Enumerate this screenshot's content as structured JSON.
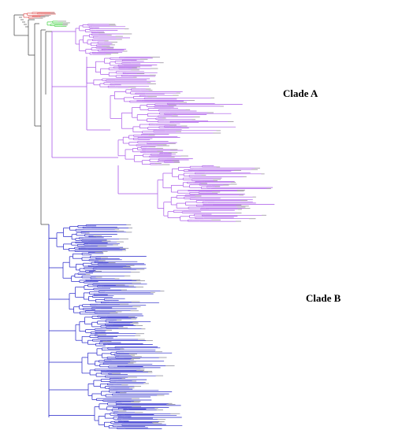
{
  "figure": {
    "type": "phylogenetic-tree",
    "orientation": "rectangular-cladogram",
    "clades": [
      {
        "key": "outgroup-red",
        "color": "#e05050"
      },
      {
        "key": "outgroup-green",
        "color": "#3ed03e"
      },
      {
        "key": "clade-a",
        "label": "Clade A",
        "color": "#a855e8"
      },
      {
        "key": "clade-b",
        "label": "Clade B",
        "color": "#2020c8"
      }
    ],
    "backbone_color": "#555555",
    "tip_color": "#aaaaaa"
  }
}
